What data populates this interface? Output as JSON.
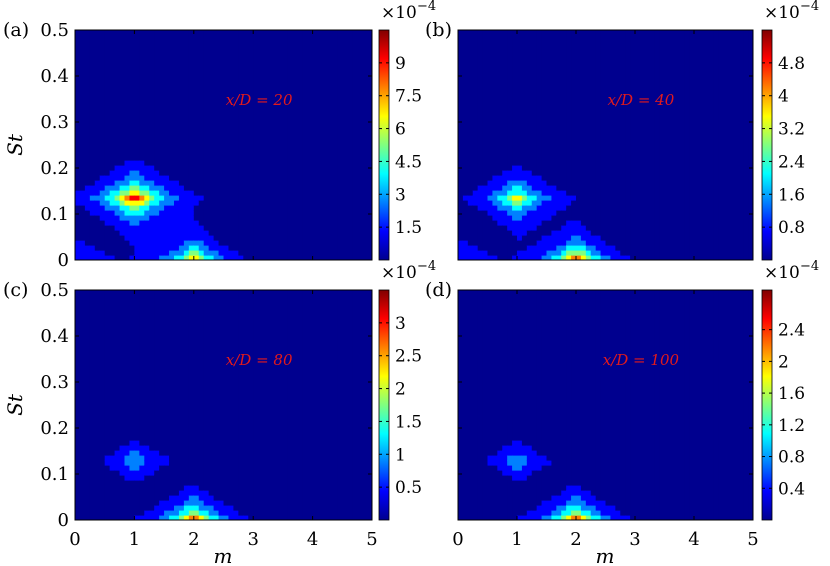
{
  "figure": {
    "xlabel": "m",
    "ylabel": "St",
    "xticks": [
      "0",
      "1",
      "2",
      "3",
      "4",
      "5"
    ],
    "yticks": [
      "0",
      "0.1",
      "0.2",
      "0.3",
      "0.4",
      "0.5"
    ]
  },
  "colors": {
    "background": "#00008f",
    "annotation": "#e31a1c",
    "colormap": [
      "#00008f",
      "#0000ff",
      "#0080ff",
      "#00ffff",
      "#80ff80",
      "#ffff00",
      "#ff8000",
      "#ff0000",
      "#800000"
    ]
  },
  "chart_data": [
    {
      "type": "heatmap",
      "label": "(a)",
      "annotation": "x/D = 20",
      "x": [
        0,
        1,
        2,
        3,
        4,
        5
      ],
      "y": [
        0,
        0.1,
        0.2,
        0.3,
        0.4,
        0.5
      ],
      "xlim": [
        0,
        5
      ],
      "ylim": [
        0,
        0.5
      ],
      "colorbar": {
        "multiplier": "×10",
        "exponent": "−4",
        "ticks": [
          "1.5",
          "3",
          "4.5",
          "6",
          "7.5",
          "9"
        ],
        "tick_values": [
          1.5,
          3,
          4.5,
          6,
          7.5,
          9
        ],
        "max": 10.5
      },
      "peaks": [
        {
          "m": 1,
          "St": 0.135,
          "value": 10.5,
          "sx": 0.85,
          "sy": 0.07
        },
        {
          "m": 2,
          "St": 0.0,
          "value": 9.0,
          "sx": 0.75,
          "sy": 0.06
        }
      ],
      "baseline": 0.15
    },
    {
      "type": "heatmap",
      "label": "(b)",
      "annotation": "x/D = 40",
      "x": [
        0,
        1,
        2,
        3,
        4,
        5
      ],
      "y": [
        0,
        0.1,
        0.2,
        0.3,
        0.4,
        0.5
      ],
      "xlim": [
        0,
        5
      ],
      "ylim": [
        0,
        0.5
      ],
      "colorbar": {
        "multiplier": "×10",
        "exponent": "−4",
        "ticks": [
          "0.8",
          "1.6",
          "2.4",
          "3.2",
          "4",
          "4.8"
        ],
        "tick_values": [
          0.8,
          1.6,
          2.4,
          3.2,
          4,
          4.8
        ],
        "max": 5.6
      },
      "peaks": [
        {
          "m": 1,
          "St": 0.135,
          "value": 3.9,
          "sx": 0.85,
          "sy": 0.07
        },
        {
          "m": 2,
          "St": 0.0,
          "value": 5.6,
          "sx": 0.75,
          "sy": 0.06
        }
      ],
      "baseline": 0.15
    },
    {
      "type": "heatmap",
      "label": "(c)",
      "annotation": "x/D = 80",
      "x": [
        0,
        1,
        2,
        3,
        4,
        5
      ],
      "y": [
        0,
        0.1,
        0.2,
        0.3,
        0.4,
        0.5
      ],
      "xlim": [
        0,
        5
      ],
      "ylim": [
        0,
        0.5
      ],
      "colorbar": {
        "multiplier": "×10",
        "exponent": "−4",
        "ticks": [
          "0.5",
          "1",
          "1.5",
          "2",
          "2.5",
          "3"
        ],
        "tick_values": [
          0.5,
          1,
          1.5,
          2,
          2.5,
          3
        ],
        "max": 3.5
      },
      "peaks": [
        {
          "m": 1,
          "St": 0.13,
          "value": 1.5,
          "sx": 0.75,
          "sy": 0.06
        },
        {
          "m": 2,
          "St": 0.0,
          "value": 3.5,
          "sx": 0.75,
          "sy": 0.06
        }
      ],
      "baseline": 0.1
    },
    {
      "type": "heatmap",
      "label": "(d)",
      "annotation": "x/D = 100",
      "x": [
        0,
        1,
        2,
        3,
        4,
        5
      ],
      "y": [
        0,
        0.1,
        0.2,
        0.3,
        0.4,
        0.5
      ],
      "xlim": [
        0,
        5
      ],
      "ylim": [
        0,
        0.5
      ],
      "colorbar": {
        "multiplier": "×10",
        "exponent": "−4",
        "ticks": [
          "0.4",
          "0.8",
          "1.2",
          "1.6",
          "2",
          "2.4"
        ],
        "tick_values": [
          0.4,
          0.8,
          1.2,
          1.6,
          2,
          2.4
        ],
        "max": 2.9
      },
      "peaks": [
        {
          "m": 1,
          "St": 0.13,
          "value": 1.2,
          "sx": 0.75,
          "sy": 0.06
        },
        {
          "m": 2,
          "St": 0.0,
          "value": 2.9,
          "sx": 0.75,
          "sy": 0.06
        }
      ],
      "baseline": 0.1
    }
  ]
}
